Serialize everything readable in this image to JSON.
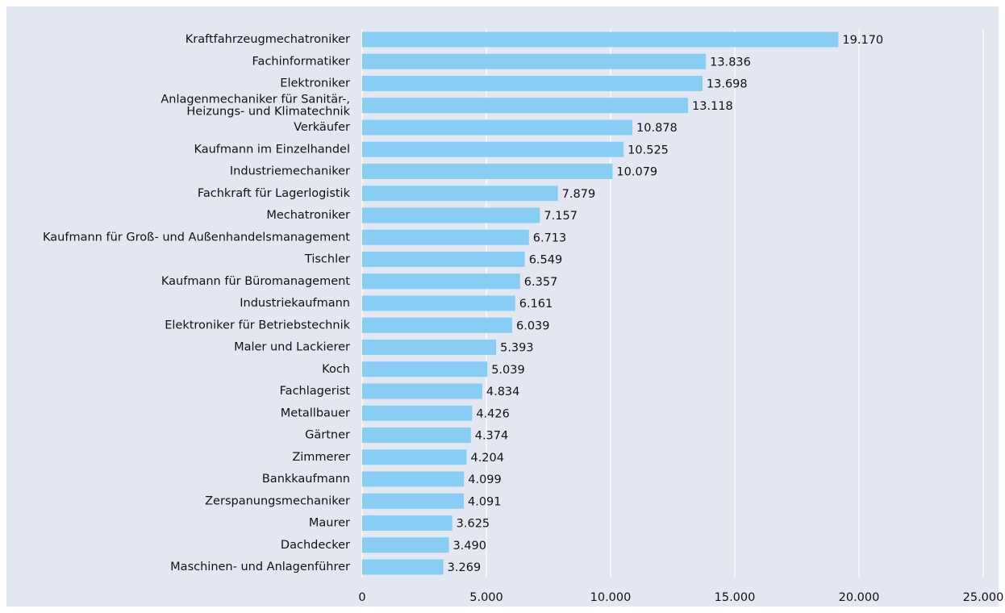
{
  "chart_data": {
    "type": "bar",
    "orientation": "horizontal",
    "categories": [
      "Kraftfahrzeugmechatroniker",
      "Fachinformatiker",
      "Elektroniker",
      "Anlagenmechaniker für Sanitär-,\nHeizungs- und Klimatechnik",
      "Verkäufer",
      "Kaufmann im Einzelhandel",
      "Industriemechaniker",
      "Fachkraft für Lagerlogistik",
      "Mechatroniker",
      "Kaufmann für Groß- und Außenhandelsmanagement",
      "Tischler",
      "Kaufmann für Büromanagement",
      "Industriekaufmann",
      "Elektroniker für Betriebstechnik",
      "Maler und Lackierer",
      "Koch",
      "Fachlagerist",
      "Metallbauer",
      "Gärtner",
      "Zimmerer",
      "Bankkaufmann",
      "Zerspanungsmechaniker",
      "Maurer",
      "Dachdecker",
      "Maschinen- und Anlagenführer"
    ],
    "values": [
      19170,
      13836,
      13698,
      13118,
      10878,
      10525,
      10079,
      7879,
      7157,
      6713,
      6549,
      6357,
      6161,
      6039,
      5393,
      5039,
      4834,
      4426,
      4374,
      4204,
      4099,
      4091,
      3625,
      3490,
      3269
    ],
    "value_labels": [
      "19.170",
      "13.836",
      "13.698",
      "13.118",
      "10.878",
      "10.525",
      "10.079",
      "7.879",
      "7.157",
      "6.713",
      "6.549",
      "6.357",
      "6.161",
      "6.039",
      "5.393",
      "5.039",
      "4.834",
      "4.426",
      "4.374",
      "4.204",
      "4.099",
      "4.091",
      "3.625",
      "3.490",
      "3.269"
    ],
    "color": "#87cdf4",
    "xlim": [
      0,
      25000
    ],
    "xticks": [
      0,
      {
        "value": 5000,
        "label": "5.000"
      },
      {
        "value": 10000,
        "label": "10.000"
      },
      {
        "value": 15000,
        "label": "15.000"
      },
      {
        "value": 20000,
        "label": "20.000"
      },
      {
        "value": 25000,
        "label": "25.000"
      }
    ],
    "grid": true
  }
}
